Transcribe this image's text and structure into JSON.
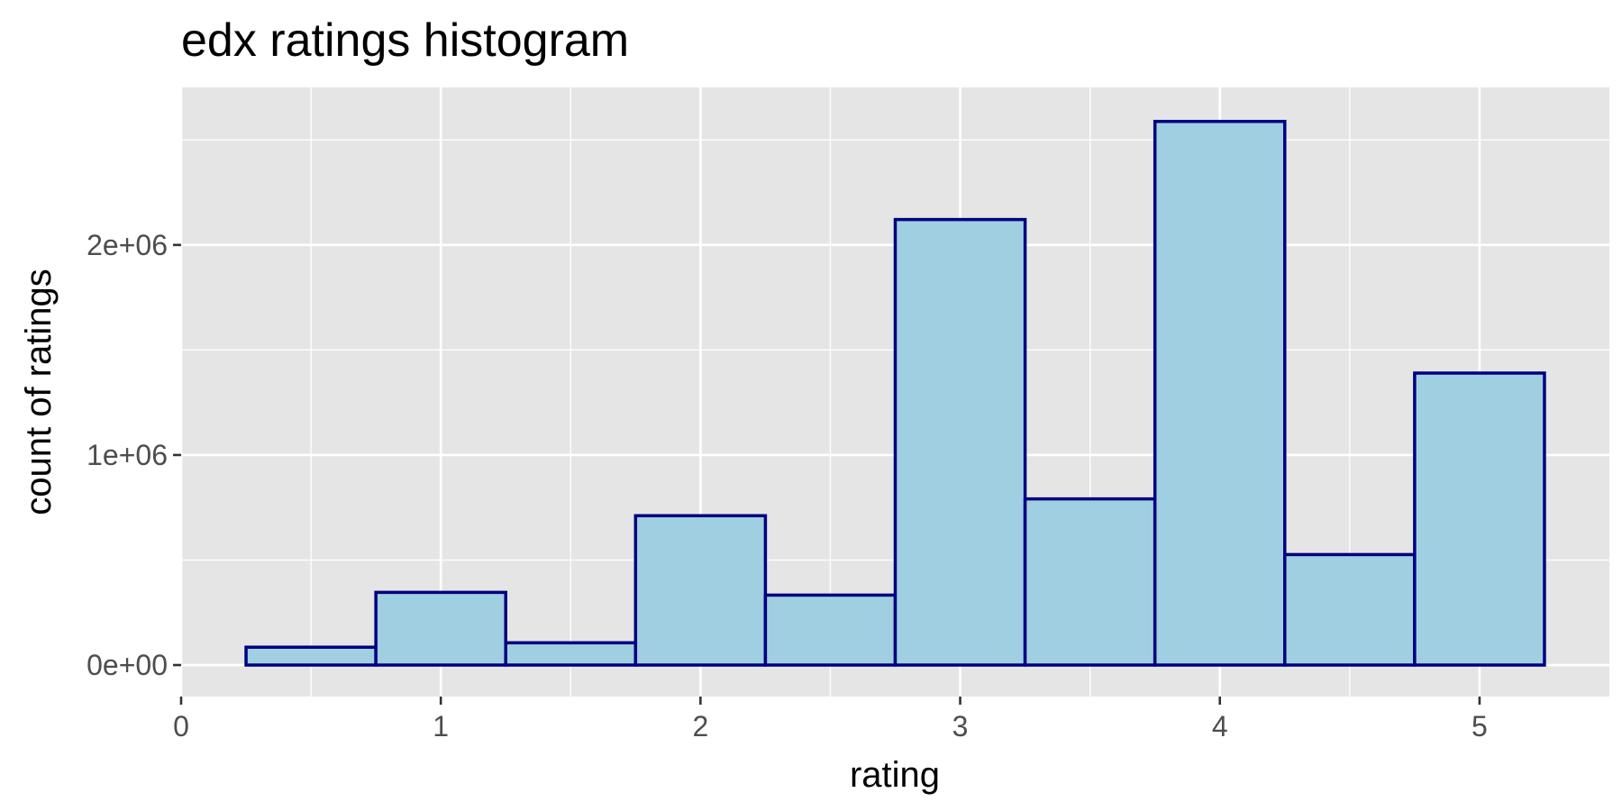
{
  "chart_data": {
    "type": "bar",
    "title": "edx ratings histogram",
    "xlabel": "rating",
    "ylabel": "count of ratings",
    "xlim": [
      0,
      5.5
    ],
    "ylim": [
      -150000,
      2750000
    ],
    "bin_width": 0.5,
    "x": [
      0.5,
      1.0,
      1.5,
      2.0,
      2.5,
      3.0,
      3.5,
      4.0,
      4.5,
      5.0
    ],
    "values": [
      85000,
      346000,
      106000,
      711000,
      333000,
      2121000,
      791000,
      2588000,
      526000,
      1390000
    ],
    "x_ticks": [
      0,
      1,
      2,
      3,
      4,
      5
    ],
    "x_tick_labels": [
      "0",
      "1",
      "2",
      "3",
      "4",
      "5"
    ],
    "y_ticks": [
      0,
      1000000,
      2000000
    ],
    "y_tick_labels": [
      "0e+00",
      "1e+06",
      "2e+06"
    ],
    "grid": true,
    "legend": "none",
    "colors": {
      "panel_background": "#e5e5e5",
      "gridline": "#ffffff",
      "bar_fill": "#a0cfe1",
      "bar_outline": "#000080",
      "tick": "#333333",
      "tick_label": "#4d4d4d"
    }
  }
}
